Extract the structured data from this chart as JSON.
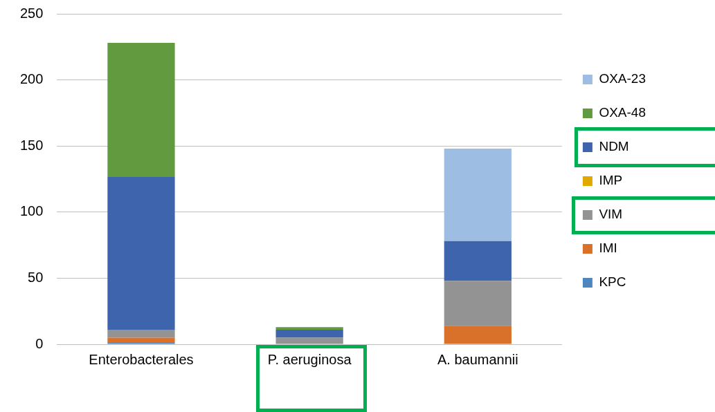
{
  "chart_data": {
    "type": "bar",
    "stacked": true,
    "categories": [
      "Enterobacterales",
      "P. aeruginosa",
      "A. baumannii"
    ],
    "series": [
      {
        "name": "KPC",
        "color": "#4f86c0",
        "values": [
          1,
          0,
          0
        ]
      },
      {
        "name": "IMI",
        "color": "#d9712b",
        "values": [
          4,
          0,
          14
        ]
      },
      {
        "name": "VIM",
        "color": "#939393",
        "values": [
          6,
          5,
          34
        ]
      },
      {
        "name": "IMP",
        "color": "#e0a800",
        "values": [
          0,
          0,
          0
        ]
      },
      {
        "name": "NDM",
        "color": "#3d64ad",
        "values": [
          116,
          6,
          30
        ]
      },
      {
        "name": "OXA-48",
        "color": "#629a3f",
        "values": [
          101,
          2,
          0
        ]
      },
      {
        "name": "OXA-23",
        "color": "#9dbde3",
        "values": [
          0,
          0,
          70
        ]
      }
    ],
    "ylim": [
      0,
      250
    ],
    "yticks": [
      0,
      50,
      100,
      150,
      200,
      250
    ],
    "grid": "y",
    "legend": "right"
  }
}
